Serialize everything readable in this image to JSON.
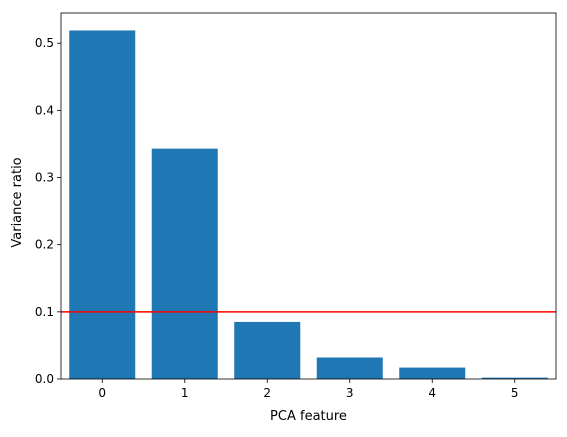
{
  "chart_data": {
    "type": "bar",
    "title": "",
    "xlabel": "PCA feature",
    "ylabel": "Variance ratio",
    "categories": [
      "0",
      "1",
      "2",
      "3",
      "4",
      "5"
    ],
    "values": [
      0.519,
      0.343,
      0.085,
      0.032,
      0.017,
      0.002
    ],
    "ylim": [
      0,
      0.545
    ],
    "xlim": [
      -0.5,
      5.5
    ],
    "yticks": [
      0.0,
      0.1,
      0.2,
      0.3,
      0.4,
      0.5
    ],
    "ytick_labels": [
      "0.0",
      "0.1",
      "0.2",
      "0.3",
      "0.4",
      "0.5"
    ],
    "reference_line": {
      "y": 0.1,
      "color": "#ff0000"
    },
    "bar_color": "#1f77b4",
    "grid": false,
    "legend": "none"
  }
}
